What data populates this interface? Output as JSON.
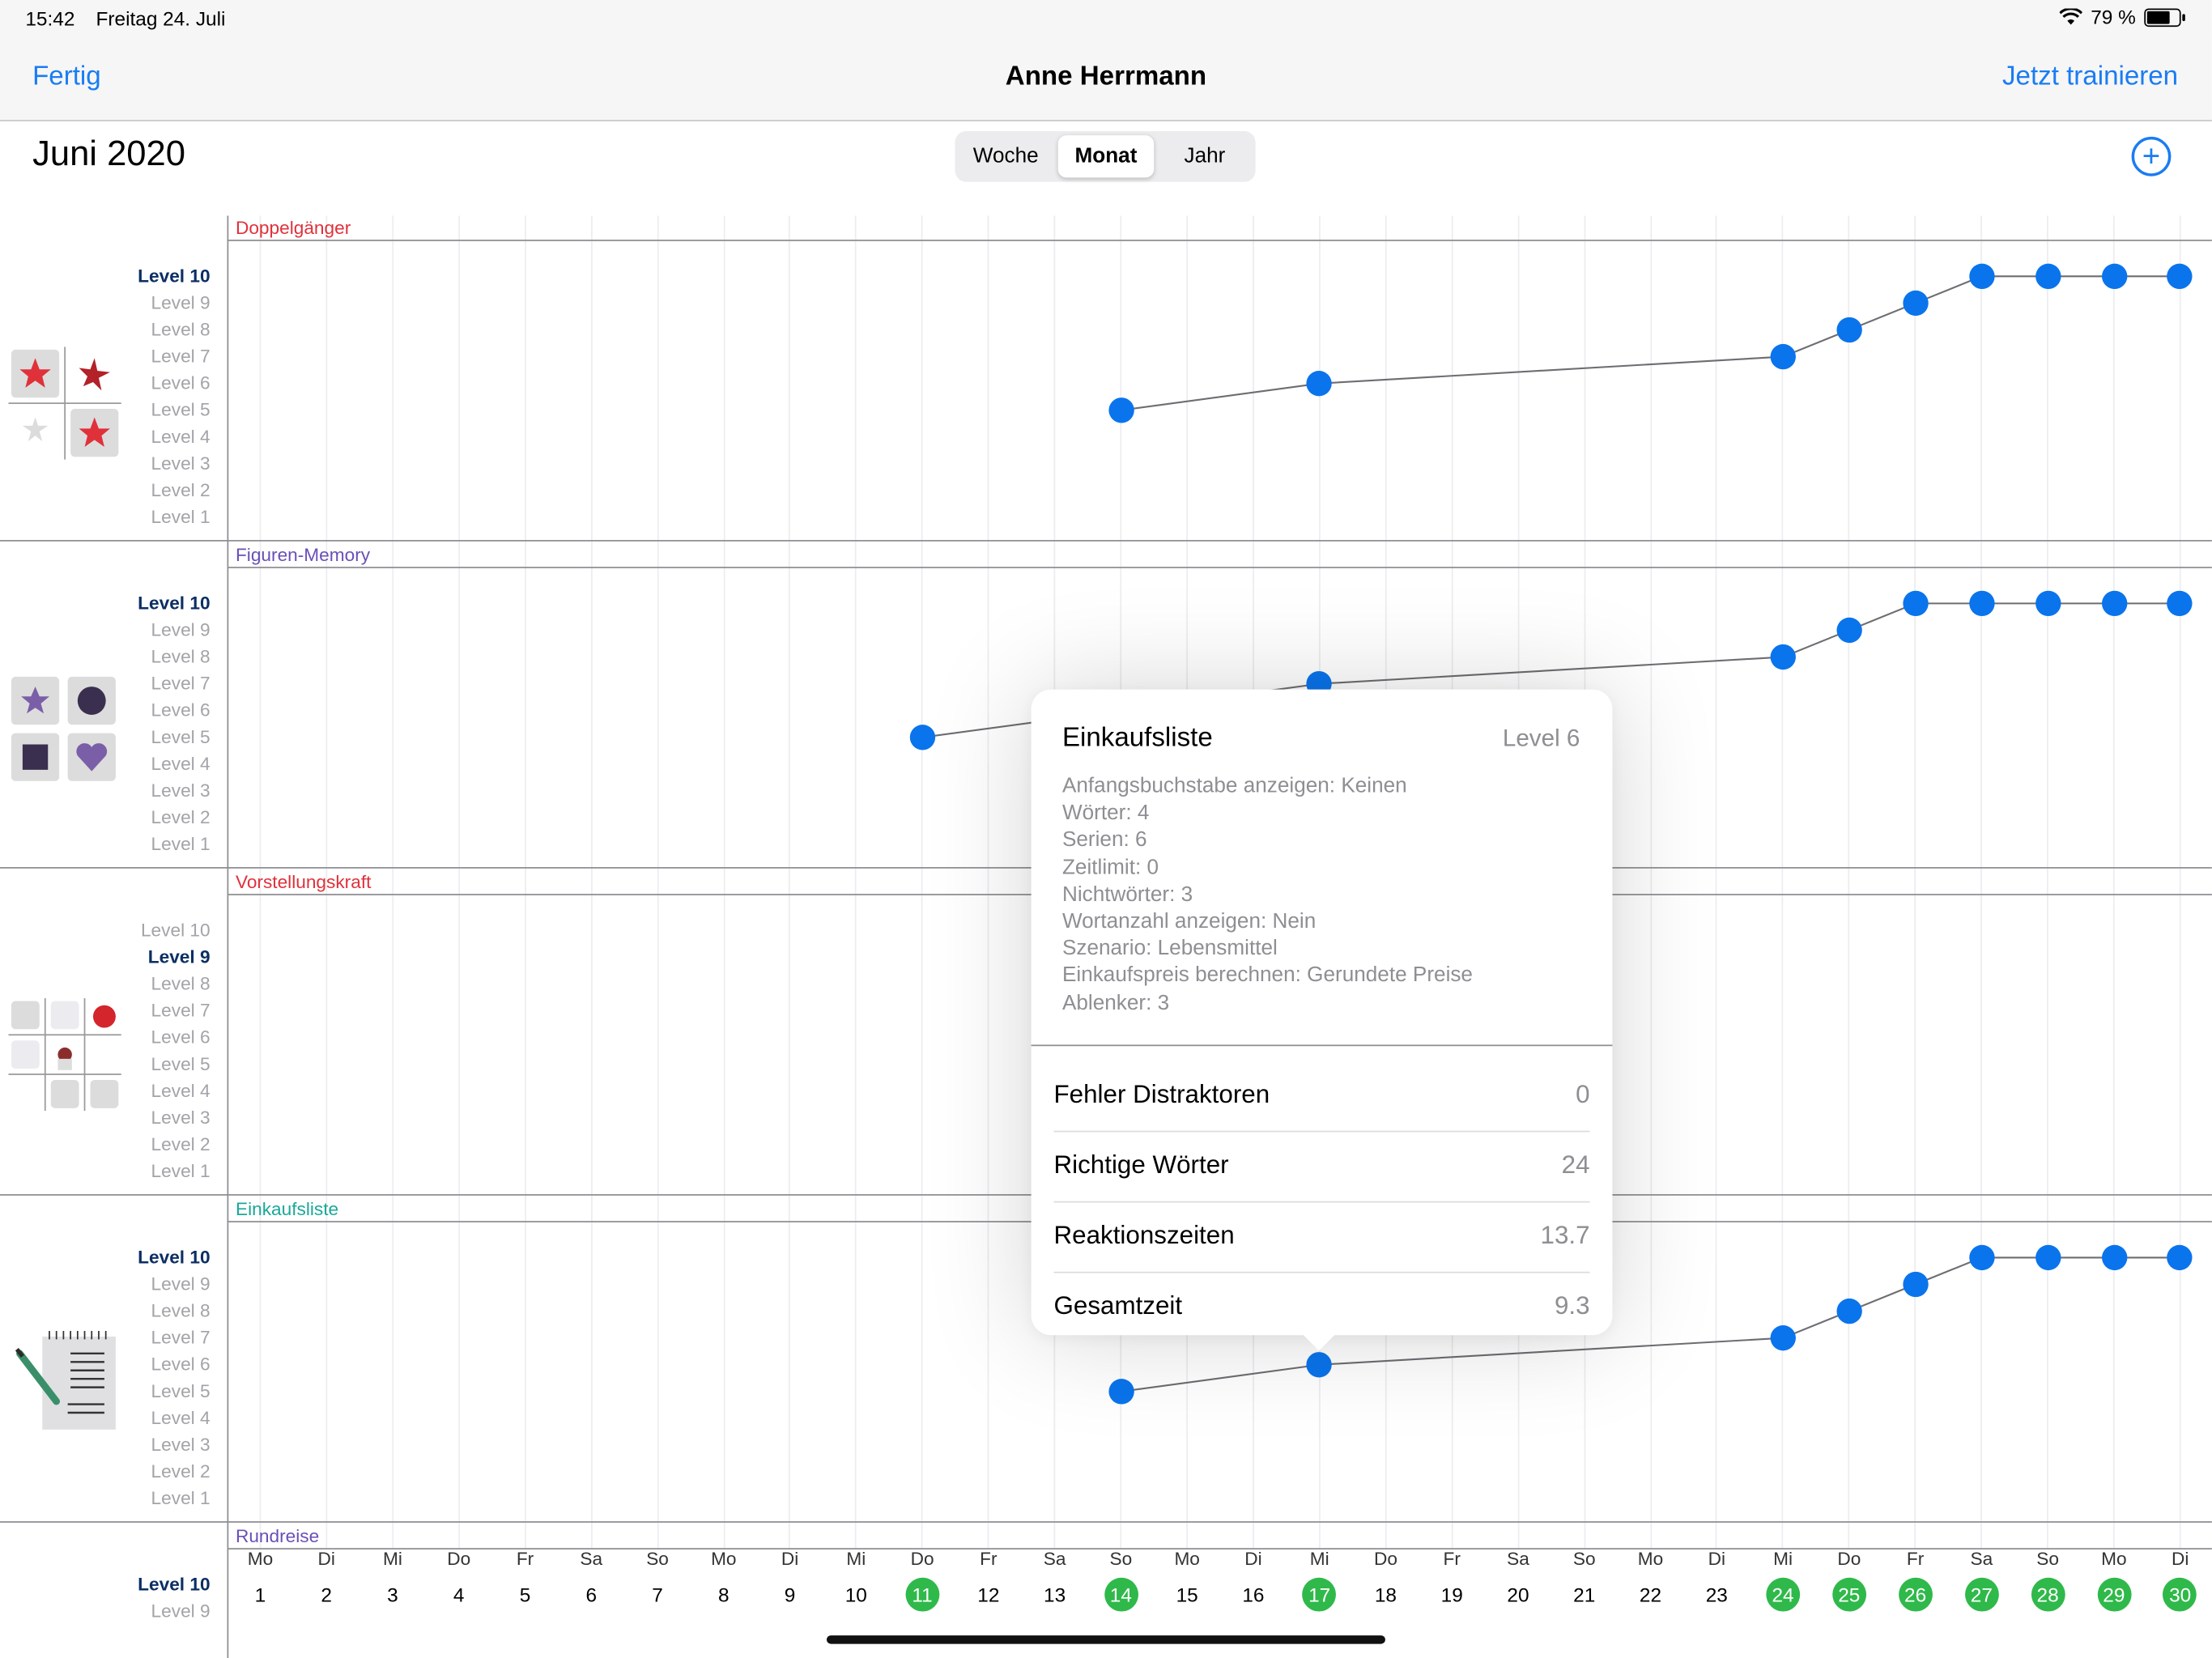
{
  "status_bar": {
    "time": "15:42",
    "date": "Freitag 24. Juli",
    "battery": "79 %",
    "battery_fraction": 0.79
  },
  "nav": {
    "left": "Fertig",
    "title": "Anne Herrmann",
    "right": "Jetzt trainieren"
  },
  "header": {
    "month": "Juni 2020",
    "segments": [
      "Woche",
      "Monat",
      "Jahr"
    ],
    "selected_segment": "Monat",
    "add_icon": "plus-circle-icon"
  },
  "colors": {
    "accent": "#1a7cf2",
    "dot": "#0a74ec",
    "highlight_day": "#2fb94a"
  },
  "chart_data": {
    "type": "line",
    "x_categories": [
      {
        "day": "Mo",
        "date": 1
      },
      {
        "day": "Di",
        "date": 2
      },
      {
        "day": "Mi",
        "date": 3
      },
      {
        "day": "Do",
        "date": 4
      },
      {
        "day": "Fr",
        "date": 5
      },
      {
        "day": "Sa",
        "date": 6
      },
      {
        "day": "So",
        "date": 7
      },
      {
        "day": "Mo",
        "date": 8
      },
      {
        "day": "Di",
        "date": 9
      },
      {
        "day": "Mi",
        "date": 10
      },
      {
        "day": "Do",
        "date": 11
      },
      {
        "day": "Fr",
        "date": 12
      },
      {
        "day": "Sa",
        "date": 13
      },
      {
        "day": "So",
        "date": 14
      },
      {
        "day": "Mo",
        "date": 15
      },
      {
        "day": "Di",
        "date": 16
      },
      {
        "day": "Mi",
        "date": 17
      },
      {
        "day": "Do",
        "date": 18
      },
      {
        "day": "Fr",
        "date": 19
      },
      {
        "day": "Sa",
        "date": 20
      },
      {
        "day": "So",
        "date": 21
      },
      {
        "day": "Mo",
        "date": 22
      },
      {
        "day": "Di",
        "date": 23
      },
      {
        "day": "Mi",
        "date": 24
      },
      {
        "day": "Do",
        "date": 25
      },
      {
        "day": "Fr",
        "date": 26
      },
      {
        "day": "Sa",
        "date": 27
      },
      {
        "day": "So",
        "date": 28
      },
      {
        "day": "Mo",
        "date": 29
      },
      {
        "day": "Di",
        "date": 30
      }
    ],
    "highlighted_dates": [
      11,
      14,
      17,
      24,
      25,
      26,
      27,
      28,
      29,
      30
    ],
    "y_labels": [
      "Level 10",
      "Level 9",
      "Level 8",
      "Level 7",
      "Level 6",
      "Level 5",
      "Level 4",
      "Level 3",
      "Level 2",
      "Level 1"
    ],
    "series": [
      {
        "name": "Doppelgänger",
        "color": "#e0313b",
        "max_level": 10,
        "icon": "stars-grid-icon",
        "points": [
          {
            "x": 14,
            "y": 5
          },
          {
            "x": 17,
            "y": 6
          },
          {
            "x": 24,
            "y": 7
          },
          {
            "x": 25,
            "y": 8
          },
          {
            "x": 26,
            "y": 9
          },
          {
            "x": 27,
            "y": 10
          },
          {
            "x": 28,
            "y": 10
          },
          {
            "x": 29,
            "y": 10
          },
          {
            "x": 30,
            "y": 10
          }
        ]
      },
      {
        "name": "Figuren-Memory",
        "color": "#6a4fb8",
        "max_level": 10,
        "icon": "shapes-grid-icon",
        "points": [
          {
            "x": 11,
            "y": 5
          },
          {
            "x": 17,
            "y": 7
          },
          {
            "x": 24,
            "y": 8
          },
          {
            "x": 25,
            "y": 9
          },
          {
            "x": 26,
            "y": 10
          },
          {
            "x": 27,
            "y": 10
          },
          {
            "x": 28,
            "y": 10
          },
          {
            "x": 29,
            "y": 10
          },
          {
            "x": 30,
            "y": 10
          }
        ]
      },
      {
        "name": "Vorstellungskraft",
        "color": "#e0313b",
        "max_level": 9,
        "icon": "imagination-grid-icon",
        "points": []
      },
      {
        "name": "Einkaufsliste",
        "color": "#1aa898",
        "max_level": 10,
        "icon": "notepad-icon",
        "points": [
          {
            "x": 14,
            "y": 5
          },
          {
            "x": 17,
            "y": 6
          },
          {
            "x": 24,
            "y": 7
          },
          {
            "x": 25,
            "y": 8
          },
          {
            "x": 26,
            "y": 9
          },
          {
            "x": 27,
            "y": 10
          },
          {
            "x": 28,
            "y": 10
          },
          {
            "x": 29,
            "y": 10
          },
          {
            "x": 30,
            "y": 10
          }
        ]
      },
      {
        "name": "Rundreise",
        "color": "#6a4fb8",
        "max_level": 10,
        "icon": "",
        "points": []
      }
    ]
  },
  "popover": {
    "title": "Einkaufsliste",
    "level": "Level 6",
    "details": [
      "Anfangsbuchstabe anzeigen: Keinen",
      "Wörter: 4",
      "Serien: 6",
      "Zeitlimit: 0",
      "Nichtwörter: 3",
      "Wortanzahl anzeigen: Nein",
      "Szenario: Lebensmittel",
      "Einkaufspreis berechnen: Gerundete Preise",
      "Ablenker: 3"
    ],
    "stats": [
      {
        "label": "Fehler Distraktoren",
        "value": "0"
      },
      {
        "label": "Richtige Wörter",
        "value": "24"
      },
      {
        "label": "Reaktionszeiten",
        "value": "13.7"
      },
      {
        "label": "Gesamtzeit",
        "value": "9.3"
      }
    ]
  }
}
